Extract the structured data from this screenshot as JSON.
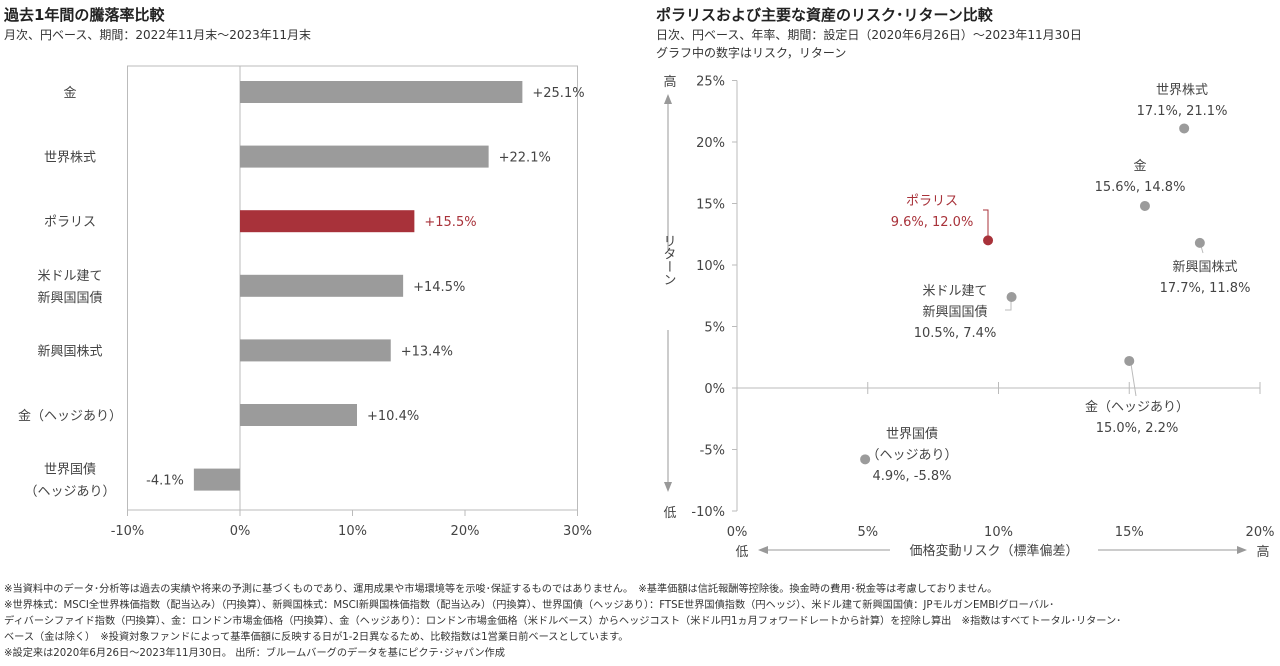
{
  "chart_data": [
    {
      "type": "bar",
      "title": "過去1年間の騰落率比較",
      "subtitle": "月次、円ベース、期間：2022年11月末～2023年11月末",
      "categories": [
        [
          "金"
        ],
        [
          "世界株式"
        ],
        [
          "ポラリス"
        ],
        [
          "米ドル建て",
          "新興国国債"
        ],
        [
          "新興国株式"
        ],
        [
          "金（ヘッジあり）"
        ],
        [
          "世界国債",
          "（ヘッジあり）"
        ]
      ],
      "values": [
        25.1,
        22.1,
        15.5,
        14.5,
        13.4,
        10.4,
        -4.1
      ],
      "data_labels": [
        "+25.1%",
        "+22.1%",
        "+15.5%",
        "+14.5%",
        "+13.4%",
        "+10.4%",
        "-4.1%"
      ],
      "highlight_index": 2,
      "xlim": [
        -10,
        30
      ],
      "xticks": [
        -10,
        0,
        10,
        20,
        30
      ],
      "xtick_labels": [
        "-10%",
        "0%",
        "10%",
        "20%",
        "30%"
      ],
      "orientation": "horizontal",
      "colors": {
        "bar": "#9b9b9b",
        "highlight": "#a8323a"
      }
    },
    {
      "type": "scatter",
      "title": "ポラリスおよび主要な資産のリスク･リターン比較",
      "subtitle": "日次、円ベース、年率、期間：設定日（2020年6月26日）～2023年11月30日",
      "note": "グラフ中の数字はリスク，リターン",
      "xlabel": "価格変動リスク（標準偏差）",
      "ylabel": "リターン",
      "x_low": "低",
      "x_high": "高",
      "y_low": "低",
      "y_high": "高",
      "xlim": [
        0,
        20
      ],
      "ylim": [
        -10,
        25
      ],
      "xticks": [
        0,
        5,
        10,
        15,
        20
      ],
      "xtick_labels": [
        "0%",
        "5%",
        "10%",
        "15%",
        "20%"
      ],
      "yticks": [
        -10,
        -5,
        0,
        5,
        10,
        15,
        20,
        25
      ],
      "ytick_labels": [
        "-10%",
        "-5%",
        "0%",
        "5%",
        "10%",
        "15%",
        "20%",
        "25%"
      ],
      "points": [
        {
          "name": [
            "世界株式"
          ],
          "x": 17.1,
          "y": 21.1,
          "label": "17.1%, 21.1%"
        },
        {
          "name": [
            "金"
          ],
          "x": 15.6,
          "y": 14.8,
          "label": "15.6%, 14.8%"
        },
        {
          "name": [
            "ポラリス"
          ],
          "x": 9.6,
          "y": 12.0,
          "label": "9.6%, 12.0%",
          "highlight": true
        },
        {
          "name": [
            "新興国株式"
          ],
          "x": 17.7,
          "y": 11.8,
          "label": "17.7%, 11.8%"
        },
        {
          "name": [
            "米ドル建て",
            "新興国国債"
          ],
          "x": 10.5,
          "y": 7.4,
          "label": "10.5%, 7.4%"
        },
        {
          "name": [
            "金（ヘッジあり）"
          ],
          "x": 15.0,
          "y": 2.2,
          "label": "15.0%, 2.2%"
        },
        {
          "name": [
            "世界国債",
            "（ヘッジあり）"
          ],
          "x": 4.9,
          "y": -5.8,
          "label": "4.9%, -5.8%"
        }
      ],
      "colors": {
        "point": "#9b9b9b",
        "highlight": "#a8323a"
      }
    }
  ],
  "notes": [
    "※当資料中のデータ･分析等は過去の実績や将来の予測に基づくものであり、運用成果や市場環境等を示唆･保証するものではありません。　※基準価額は信託報酬等控除後。換金時の費用･税金等は考慮しておりません。",
    "※世界株式：MSCI全世界株価指数（配当込み）（円換算）、新興国株式：MSCI新興国株価指数（配当込み）（円換算）、世界国債（ヘッジあり）：FTSE世界国債指数（円ヘッジ）、米ドル建て新興国国債：JPモルガンEMBIグローバル･",
    "ディバーシファイド指数（円換算）、金：ロンドン市場金価格（円換算）、金（ヘッジあり）：ロンドン市場金価格（米ドルベース）からヘッジコスト（米ドル円1ヵ月フォワードレートから計算）を控除し算出　※指数はすべてトータル･リターン･",
    "ベース（金は除く）　※投資対象ファンドによって基準価額に反映する日が1-2日異なるため、比較指数は1営業日前ベースとしています。",
    "※設定来は2020年6月26日～2023年11月30日。 出所：ブルームバーグのデータを基にピクテ･ジャパン作成"
  ]
}
